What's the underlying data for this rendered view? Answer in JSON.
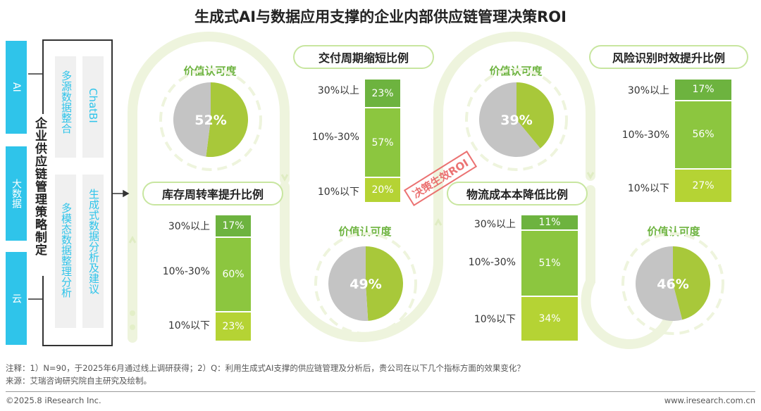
{
  "title": "生成式AI与数据应用支撑的企业内部供应链管理决策ROI",
  "left": {
    "tabs": [
      "AI",
      "大数据",
      "云"
    ],
    "col1": [
      "多源数据整合",
      "多模态数据整理分析"
    ],
    "col2": [
      "ChatBI",
      "生成式数据分析及建议"
    ],
    "main_label": "企业供应链管理策略制定"
  },
  "stamp": "决策生效ROI",
  "chart_data": [
    {
      "type": "pie",
      "title": "价值认可度",
      "values": [
        52,
        48
      ],
      "value_label": "52%",
      "colors": [
        "#a8c83a",
        "#c4c4c4"
      ]
    },
    {
      "type": "bar",
      "stacked": true,
      "title": "库存周转率提升比例",
      "categories": [
        "30%以上",
        "10%-30%",
        "10%以下"
      ],
      "values": [
        17,
        60,
        23
      ],
      "value_labels": [
        "17%",
        "60%",
        "23%"
      ]
    },
    {
      "type": "bar",
      "stacked": true,
      "title": "交付周期缩短比例",
      "categories": [
        "30%以上",
        "10%-30%",
        "10%以下"
      ],
      "values": [
        23,
        57,
        20
      ],
      "value_labels": [
        "23%",
        "57%",
        "20%"
      ]
    },
    {
      "type": "pie",
      "title": "价值认可度",
      "values": [
        49,
        51
      ],
      "value_label": "49%",
      "colors": [
        "#a8c83a",
        "#c4c4c4"
      ]
    },
    {
      "type": "pie",
      "title": "价值认可度",
      "values": [
        39,
        61
      ],
      "value_label": "39%",
      "colors": [
        "#a8c83a",
        "#c4c4c4"
      ]
    },
    {
      "type": "bar",
      "stacked": true,
      "title": "物流成本本降低比例",
      "categories": [
        "30%以上",
        "10%-30%",
        "10%以下"
      ],
      "values": [
        11,
        51,
        34
      ],
      "value_labels": [
        "11%",
        "51%",
        "34%"
      ]
    },
    {
      "type": "bar",
      "stacked": true,
      "title": "风险识别时效提升比例",
      "categories": [
        "30%以上",
        "10%-30%",
        "10%以下"
      ],
      "values": [
        17,
        56,
        27
      ],
      "value_labels": [
        "17%",
        "56%",
        "27%"
      ]
    },
    {
      "type": "pie",
      "title": "价值认可度",
      "values": [
        46,
        54
      ],
      "value_label": "46%",
      "colors": [
        "#a8c83a",
        "#c4c4c4"
      ]
    }
  ],
  "notes": {
    "note1": "注释：1）N=90，于2025年6月通过线上调研获得；2）Q：利用生成式AI支撑的供应链管理及分析后，贵公司在以下几个指标方面的效果变化？",
    "note2": "来源：艾瑞咨询研究院自主研究及绘制。"
  },
  "footer": {
    "left": "©2025.8 iResearch Inc.",
    "right": "www.iresearch.com.cn"
  },
  "colors": {
    "accent": "#2fc4ea",
    "green_dark": "#6db33f",
    "green_mid": "#8cc63f",
    "green_light": "#b5d334",
    "gray": "#c4c4c4"
  }
}
